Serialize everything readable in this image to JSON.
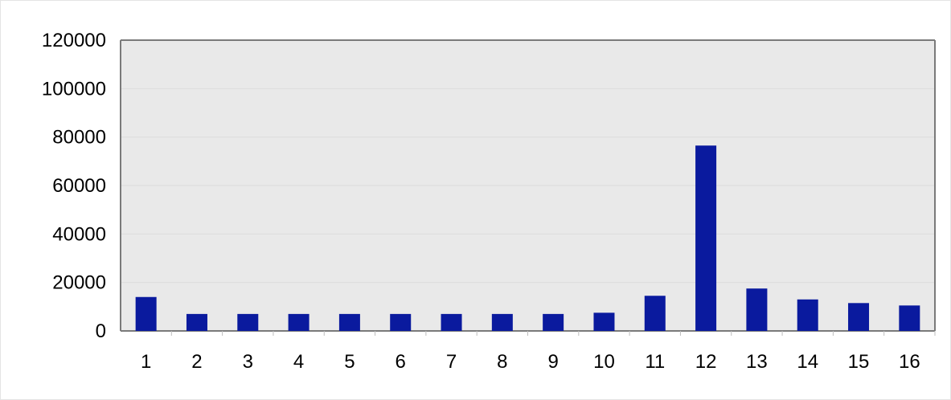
{
  "chart_data": {
    "type": "bar",
    "categories": [
      "1",
      "2",
      "3",
      "4",
      "5",
      "6",
      "7",
      "8",
      "9",
      "10",
      "11",
      "12",
      "13",
      "14",
      "15",
      "16"
    ],
    "values": [
      14000,
      7000,
      7000,
      7000,
      7000,
      7000,
      7000,
      7000,
      7000,
      7500,
      14500,
      76500,
      17500,
      13000,
      11500,
      10500
    ],
    "ylim": [
      0,
      120000
    ],
    "yticks": [
      "0",
      "20000",
      "40000",
      "60000",
      "80000",
      "100000",
      "120000"
    ],
    "grid": true,
    "bar_color": "#0a1a9e",
    "plot_background": "#e9e9e9",
    "gridline_color": "#dcdcdc",
    "axis_color": "#7a7a7a"
  }
}
